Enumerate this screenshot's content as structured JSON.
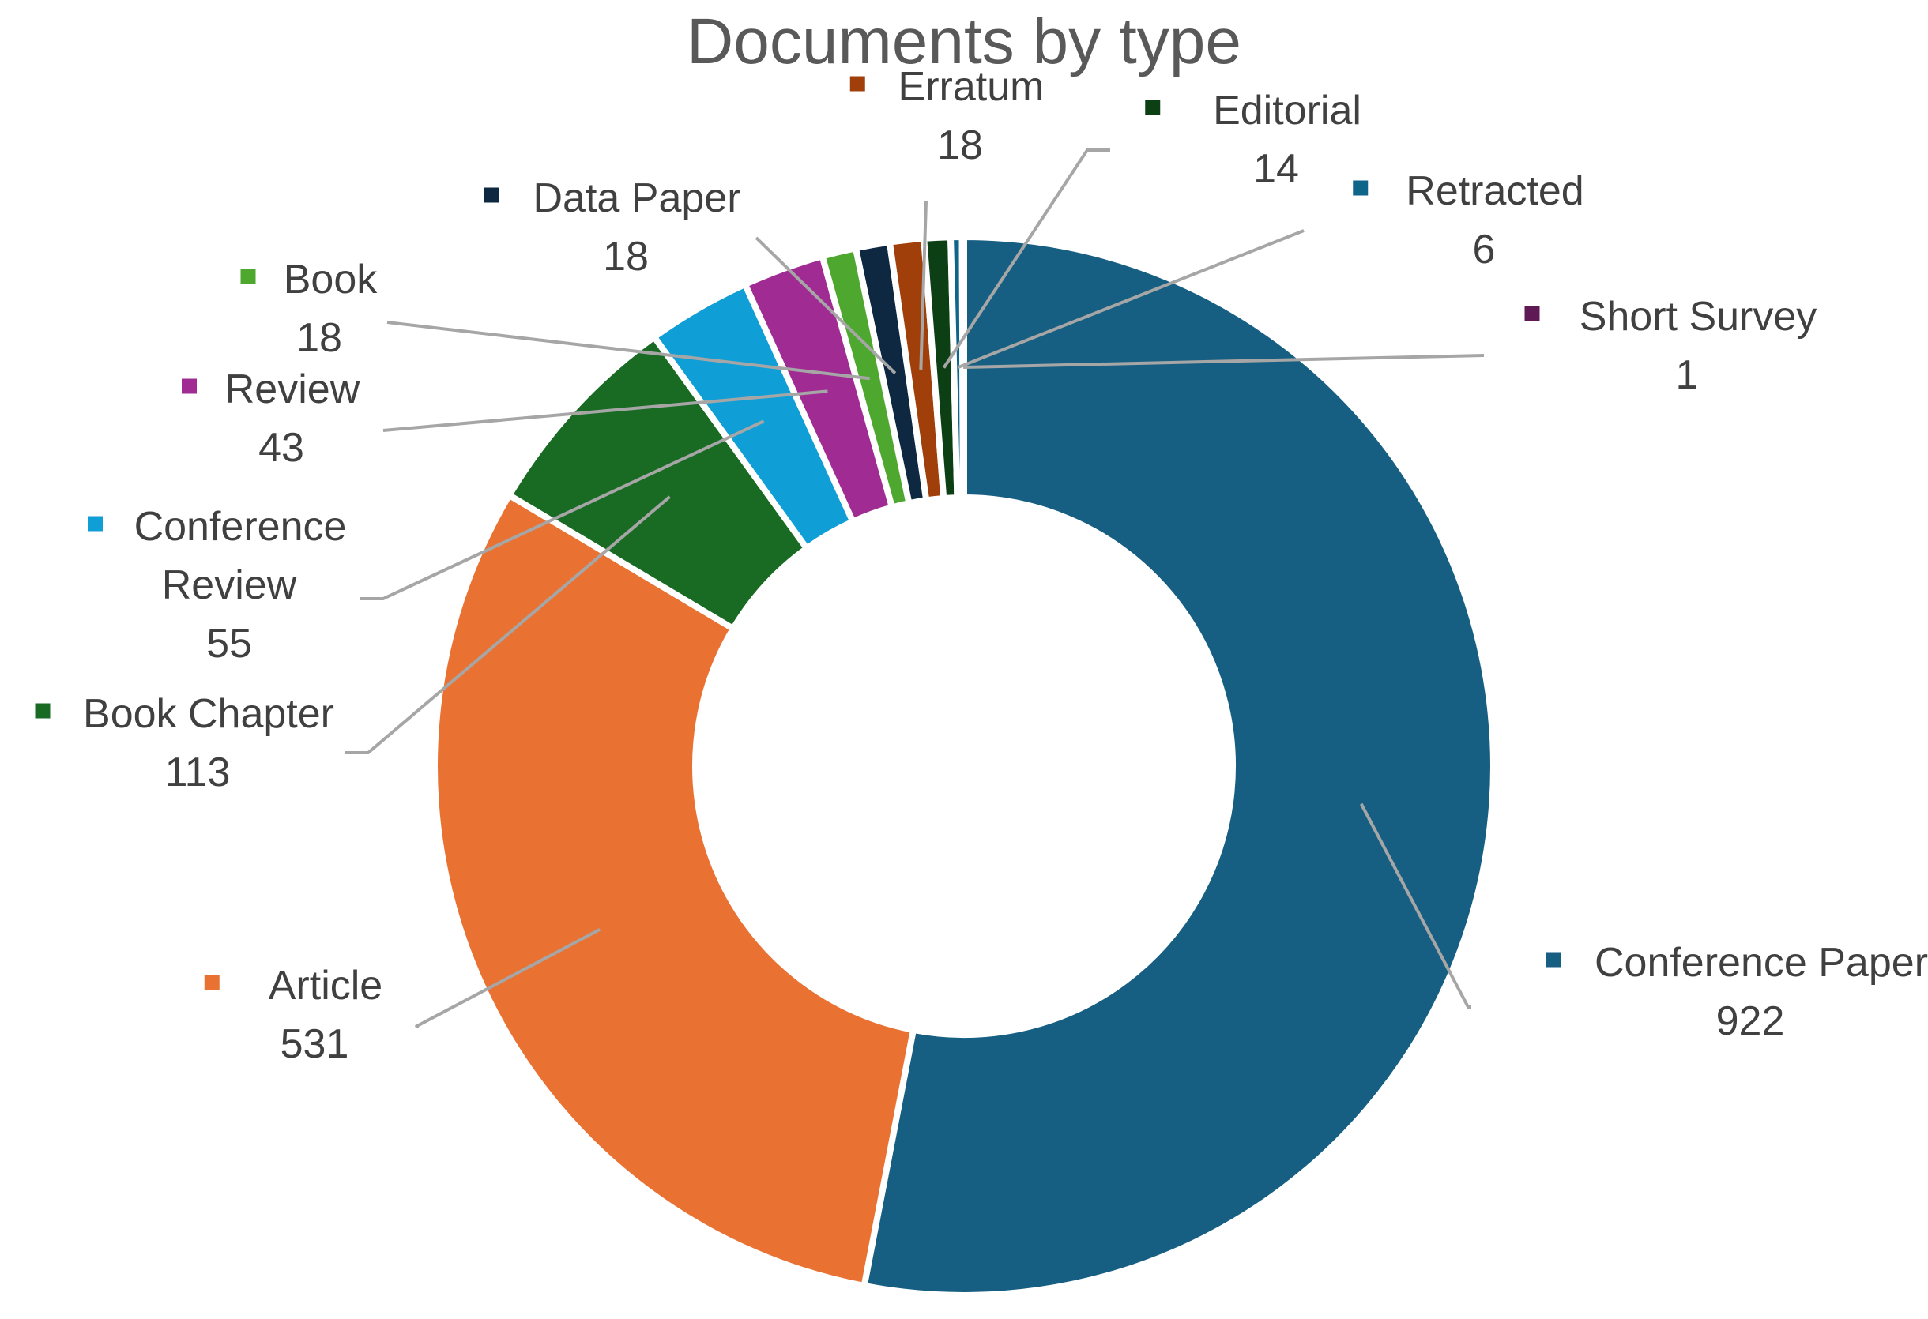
{
  "chart_data": {
    "type": "pie",
    "variant": "donut",
    "title": "Documents by type",
    "start": "12 o'clock",
    "direction": "clockwise",
    "legend": "none",
    "slices": [
      {
        "label": "Conference Paper",
        "value": 922,
        "color": "#175f82"
      },
      {
        "label": "Article",
        "value": 531,
        "color": "#e97132"
      },
      {
        "label": "Book Chapter",
        "value": 113,
        "color": "#196b24"
      },
      {
        "label": "Conference Review",
        "value": 55,
        "color": "#0f9ed5"
      },
      {
        "label": "Review",
        "value": 43,
        "color": "#a02b93"
      },
      {
        "label": "Book",
        "value": 18,
        "color": "#4ea72e"
      },
      {
        "label": "Data Paper",
        "value": 18,
        "color": "#0e2841"
      },
      {
        "label": "Erratum",
        "value": 18,
        "color": "#a03f0a"
      },
      {
        "label": "Editorial",
        "value": 14,
        "color": "#0d3f14"
      },
      {
        "label": "Retracted",
        "value": 6,
        "color": "#0e6589"
      },
      {
        "label": "Short Survey",
        "value": 1,
        "color": "#5f1a56"
      }
    ]
  }
}
